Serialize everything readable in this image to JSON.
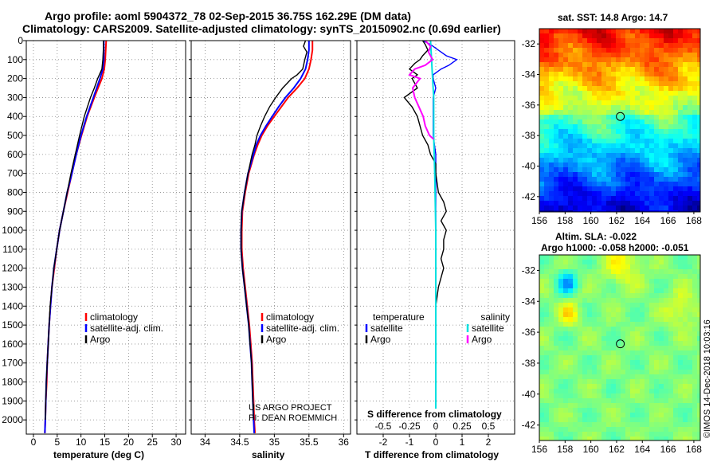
{
  "header": {
    "line1": "Argo profile: aoml 5904372_78 02-Sep-2015 36.75S 162.29E (DM data)",
    "line2": "Climatology: CARS2009. Satellite-adjusted climatology: synTS_20150902.nc (0.69d earlier)"
  },
  "colors": {
    "clim": "#ff0000",
    "sat": "#0000ff",
    "argo": "#000000",
    "sat_s": "#00e0e0",
    "argo_s": "#ff00ff"
  },
  "footer": {
    "project": "US ARGO PROJECT",
    "pi": "PI: DEAN ROEMMICH",
    "timestamp": "©IMOS 14-Dec-2018 10:03:16"
  },
  "chart_data": [
    {
      "type": "line",
      "id": "temperature",
      "xlabel": "temperature (deg C)",
      "ylabel": "",
      "xlim": [
        -1.5,
        32
      ],
      "ylim": [
        0,
        2075
      ],
      "y_inverted": true,
      "grid": true,
      "xticks": [
        "0",
        "5",
        "10",
        "15",
        "20",
        "25",
        "30"
      ],
      "yticks": [
        "0",
        "100",
        "200",
        "300",
        "400",
        "500",
        "600",
        "700",
        "800",
        "900",
        "1000",
        "1100",
        "1200",
        "1300",
        "1400",
        "1500",
        "1600",
        "1700",
        "1800",
        "1900",
        "2000"
      ],
      "legend": [
        "climatology",
        "satellite-adj. clim.",
        "Argo"
      ],
      "series": [
        {
          "name": "climatology",
          "color": "#ff0000",
          "depth": [
            0,
            50,
            100,
            150,
            200,
            250,
            300,
            400,
            500,
            600,
            700,
            800,
            900,
            1000,
            1100,
            1200,
            1300,
            1400,
            1500,
            1600,
            1700,
            1800,
            1900,
            2000,
            2070
          ],
          "values": [
            15.3,
            15.2,
            15.1,
            14.9,
            14.4,
            13.6,
            12.8,
            11.3,
            10.1,
            9.0,
            8.1,
            7.2,
            6.3,
            5.5,
            4.9,
            4.4,
            3.9,
            3.6,
            3.3,
            3.1,
            2.9,
            2.8,
            2.6,
            2.5,
            2.4
          ]
        },
        {
          "name": "satellite-adj. clim.",
          "color": "#0000ff",
          "depth": [
            0,
            50,
            100,
            150,
            200,
            250,
            300,
            400,
            500,
            600,
            700,
            800,
            900,
            1000,
            1100,
            1200,
            1300,
            1400,
            1500,
            1600,
            1700,
            1800,
            1900,
            2000,
            2070
          ],
          "values": [
            14.8,
            14.8,
            14.8,
            14.6,
            14.0,
            13.3,
            12.6,
            11.2,
            10.0,
            9.0,
            8.1,
            7.1,
            6.3,
            5.5,
            4.9,
            4.3,
            3.9,
            3.6,
            3.3,
            3.1,
            2.9,
            2.7,
            2.6,
            2.5,
            2.4
          ]
        },
        {
          "name": "Argo",
          "color": "#000000",
          "depth": [
            0,
            50,
            100,
            150,
            200,
            250,
            300,
            400,
            500,
            600,
            700,
            800,
            900,
            1000,
            1100,
            1200,
            1300,
            1400,
            1500,
            1600,
            1700,
            1800,
            1900,
            2000
          ],
          "values": [
            14.7,
            14.7,
            14.6,
            14.4,
            13.5,
            12.8,
            12.0,
            10.7,
            9.7,
            8.8,
            7.9,
            7.1,
            6.3,
            5.5,
            4.9,
            4.3,
            3.9,
            3.5,
            3.3,
            3.1,
            2.9,
            2.7,
            2.6,
            2.5
          ]
        }
      ]
    },
    {
      "type": "line",
      "id": "salinity",
      "xlabel": "salinity",
      "ylabel": "",
      "xlim": [
        33.8,
        36.1
      ],
      "ylim": [
        0,
        2075
      ],
      "y_inverted": true,
      "grid": true,
      "xticks": [
        "34",
        "34.5",
        "35",
        "35.5",
        "36"
      ],
      "legend": [
        "climatology",
        "satellite-adj. clim.",
        "Argo"
      ],
      "series": [
        {
          "name": "climatology",
          "color": "#ff0000",
          "depth": [
            0,
            50,
            100,
            150,
            200,
            250,
            300,
            350,
            400,
            450,
            500,
            550,
            600,
            700,
            800,
            900,
            1000,
            1100,
            1200,
            1300,
            1400,
            1500,
            1600,
            1700,
            1800,
            1900,
            2000,
            2070
          ],
          "values": [
            35.55,
            35.55,
            35.53,
            35.5,
            35.44,
            35.33,
            35.2,
            35.1,
            35.0,
            34.9,
            34.82,
            34.76,
            34.71,
            34.63,
            34.58,
            34.54,
            34.53,
            34.53,
            34.55,
            34.58,
            34.61,
            34.64,
            34.66,
            34.68,
            34.69,
            34.7,
            34.71,
            34.72
          ]
        },
        {
          "name": "satellite-adj. clim.",
          "color": "#0000ff",
          "depth": [
            0,
            50,
            100,
            150,
            200,
            250,
            300,
            350,
            400,
            450,
            500,
            550,
            600,
            700,
            800,
            900,
            1000,
            1100,
            1200,
            1300,
            1400,
            1500,
            1600,
            1700,
            1800,
            1900,
            2000,
            2070
          ],
          "values": [
            35.5,
            35.5,
            35.48,
            35.45,
            35.38,
            35.28,
            35.16,
            35.06,
            34.97,
            34.88,
            34.8,
            34.74,
            34.7,
            34.62,
            34.57,
            34.53,
            34.52,
            34.52,
            34.54,
            34.57,
            34.6,
            34.63,
            34.65,
            34.67,
            34.68,
            34.69,
            34.7,
            34.71
          ]
        },
        {
          "name": "Argo",
          "color": "#000000",
          "depth": [
            0,
            30,
            60,
            100,
            150,
            180,
            200,
            250,
            300,
            350,
            400,
            450,
            500,
            550,
            600,
            700,
            800,
            900,
            1000,
            1100,
            1200,
            1300,
            1400,
            1500,
            1600,
            1700,
            1800,
            1900,
            2000
          ],
          "values": [
            35.45,
            35.42,
            35.47,
            35.44,
            35.41,
            35.33,
            35.25,
            35.12,
            35.02,
            34.93,
            34.86,
            34.8,
            34.75,
            34.72,
            34.68,
            34.62,
            34.57,
            34.53,
            34.52,
            34.52,
            34.54,
            34.57,
            34.6,
            34.63,
            34.65,
            34.67,
            34.68,
            34.69,
            34.7
          ]
        }
      ]
    },
    {
      "type": "line",
      "id": "difference",
      "xlabel": "T difference from climatology",
      "x2label": "S difference from climatology",
      "xlim": [
        -3,
        3
      ],
      "x2lim": [
        -0.75,
        0.75
      ],
      "ylim": [
        0,
        2075
      ],
      "y_inverted": true,
      "grid": true,
      "xticks": [
        "-2",
        "-1",
        "0",
        "1",
        "2"
      ],
      "x2ticks": [
        "-0.5",
        "-0.25",
        "0",
        "0.25",
        "0.5"
      ],
      "legend_groups": [
        {
          "title": "temperature",
          "items": [
            "satellite",
            "Argo"
          ]
        },
        {
          "title": "salinity",
          "items": [
            "satellite",
            "Argo"
          ]
        }
      ],
      "series": [
        {
          "name": "temperature satellite",
          "color": "#0000ff",
          "axis": "T",
          "depth": [
            0,
            20,
            50,
            80,
            100,
            130,
            150,
            180,
            200,
            250,
            300,
            400,
            500,
            600,
            800,
            1000,
            1200,
            1400,
            1600,
            1800,
            2000
          ],
          "values": [
            -0.5,
            -0.2,
            0.1,
            0.4,
            0.8,
            0.5,
            0.2,
            -0.1,
            -0.1,
            0.0,
            -0.1,
            -0.1,
            -0.1,
            0.0,
            0.0,
            0.0,
            0.0,
            0.0,
            0.0,
            0.0,
            0.0
          ]
        },
        {
          "name": "temperature Argo",
          "color": "#000000",
          "axis": "T",
          "depth": [
            0,
            20,
            50,
            80,
            100,
            120,
            150,
            180,
            200,
            250,
            300,
            350,
            400,
            450,
            500,
            550,
            600,
            650,
            700,
            800,
            850,
            900,
            950,
            1000,
            1050,
            1100,
            1150,
            1200,
            1250,
            1300,
            1400,
            1500,
            1600,
            1800,
            2000
          ],
          "values": [
            -0.5,
            -0.4,
            -0.3,
            -0.5,
            -0.6,
            -0.8,
            -1.0,
            -0.7,
            -0.9,
            -0.7,
            -1.2,
            -0.9,
            -0.7,
            -0.6,
            -0.5,
            -0.3,
            -0.2,
            0.0,
            0.0,
            0.1,
            0.3,
            0.4,
            0.2,
            0.4,
            0.3,
            0.3,
            0.2,
            0.3,
            0.2,
            0.1,
            0.0,
            0.0,
            0.0,
            0.0,
            0.0
          ]
        },
        {
          "name": "salinity satellite",
          "color": "#00e0e0",
          "axis": "S",
          "depth": [
            0,
            100,
            200,
            300,
            500,
            700,
            1000,
            1500,
            2000
          ],
          "values": [
            -0.05,
            -0.04,
            -0.03,
            -0.02,
            -0.02,
            -0.01,
            0.0,
            0.0,
            0.0
          ]
        },
        {
          "name": "salinity Argo",
          "color": "#ff00ff",
          "axis": "S",
          "depth": [
            0,
            30,
            60,
            100,
            130,
            150,
            180,
            200,
            250,
            300,
            350,
            400,
            450,
            500,
            520
          ],
          "values": [
            -0.1,
            -0.05,
            -0.07,
            -0.03,
            -0.1,
            -0.2,
            -0.25,
            -0.15,
            -0.22,
            -0.2,
            -0.16,
            -0.12,
            -0.1,
            -0.06,
            -0.02
          ]
        }
      ]
    },
    {
      "type": "heatmap",
      "id": "sst_map",
      "title": "sat. SST: 14.8 Argo: 14.7",
      "xlim": [
        156,
        168.5
      ],
      "ylim": [
        -43,
        -31
      ],
      "xticks": [
        "156",
        "158",
        "160",
        "162",
        "164",
        "166",
        "168"
      ],
      "yticks": [
        "-32",
        "-34",
        "-36",
        "-38",
        "-40",
        "-42"
      ],
      "marker": {
        "lon": 162.29,
        "lat": -36.75
      }
    },
    {
      "type": "heatmap",
      "id": "sla_map",
      "title1": "Altim. SLA: -0.022",
      "title2": "Argo h1000: -0.058 h2000: -0.051",
      "xlim": [
        156,
        168.5
      ],
      "ylim": [
        -43,
        -31
      ],
      "xticks": [
        "156",
        "158",
        "160",
        "162",
        "164",
        "166",
        "168"
      ],
      "yticks": [
        "-32",
        "-34",
        "-36",
        "-38",
        "-40",
        "-42"
      ],
      "marker": {
        "lon": 162.29,
        "lat": -36.75
      }
    }
  ]
}
